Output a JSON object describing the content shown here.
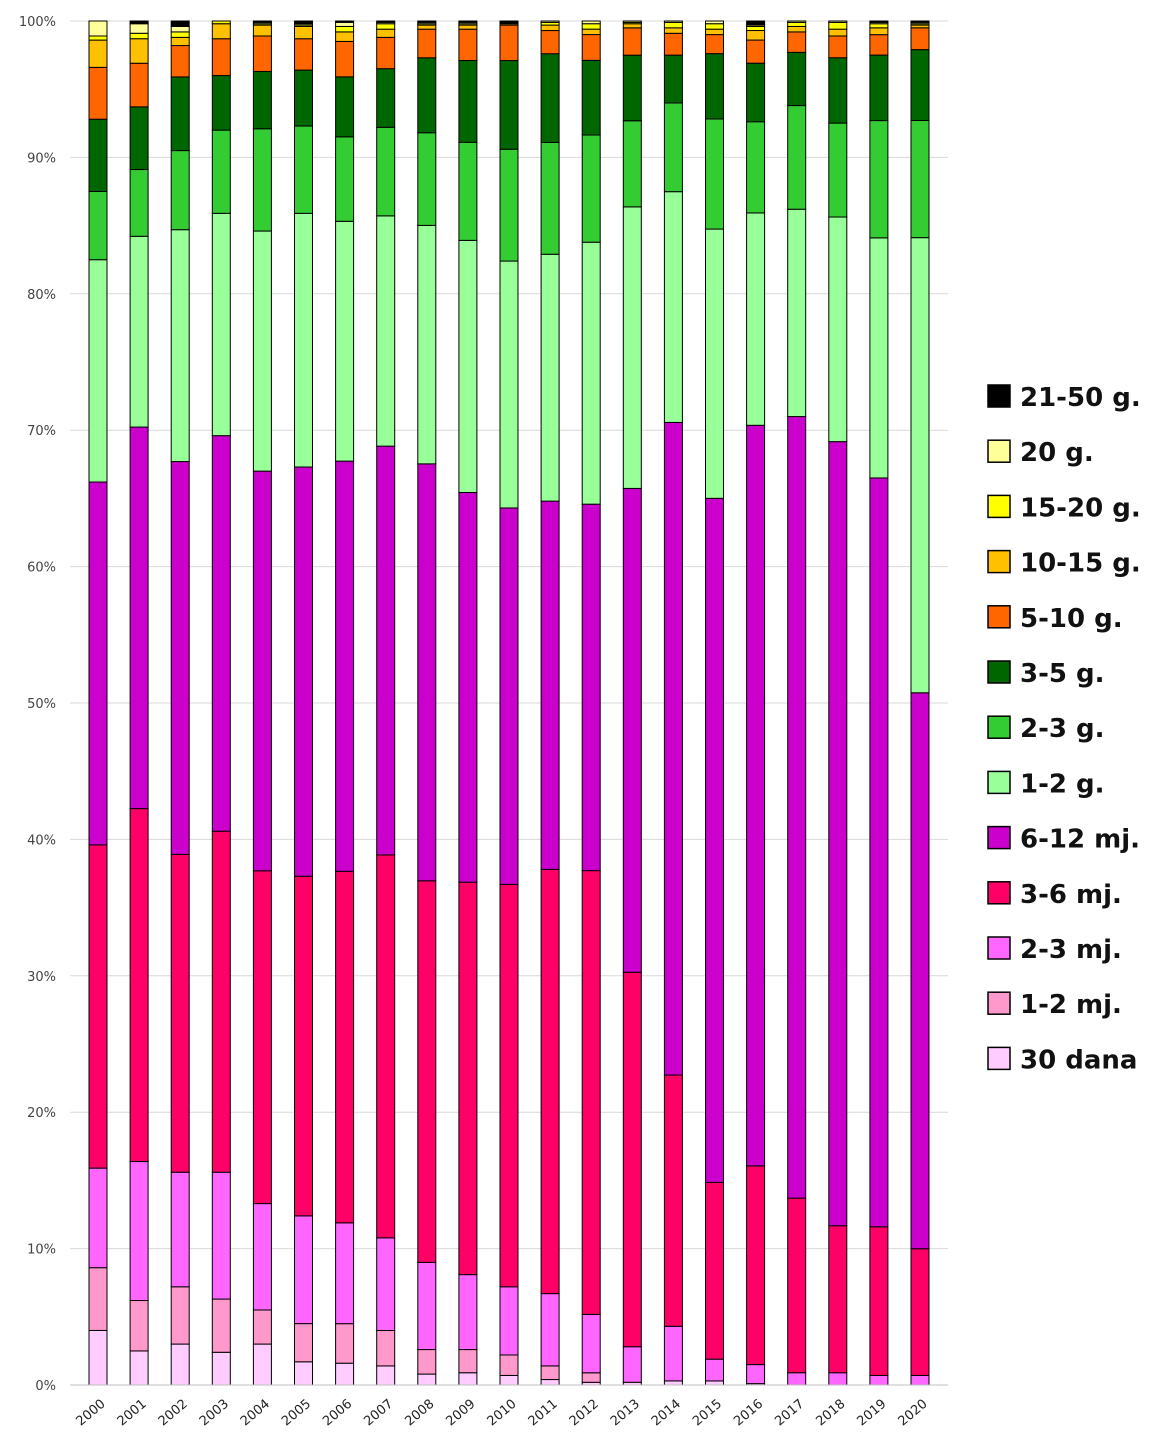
{
  "chart_data": {
    "type": "bar",
    "stacked": true,
    "normalized": true,
    "title": "",
    "xlabel": "",
    "ylabel": "",
    "ylim": [
      0,
      100
    ],
    "y_ticks": [
      "0%",
      "10%",
      "20%",
      "30%",
      "40%",
      "50%",
      "60%",
      "70%",
      "80%",
      "90%",
      "100%"
    ],
    "grid": true,
    "legend_position": "right",
    "categories": [
      "2000",
      "2001",
      "2002",
      "2003",
      "2004",
      "2005",
      "2006",
      "2007",
      "2008",
      "2009",
      "2010",
      "2011",
      "2012",
      "2013",
      "2014",
      "2015",
      "2016",
      "2017",
      "2018",
      "2019",
      "2020"
    ],
    "series": [
      {
        "name": "30 dana",
        "color": "#ffccff",
        "values": [
          4.0,
          2.5,
          3.0,
          2.4,
          3.0,
          1.7,
          1.6,
          1.4,
          0.8,
          0.9,
          0.7,
          0.4,
          0.2,
          0.2,
          0.3,
          0.3,
          0.1,
          0.0,
          0.0,
          0.0,
          0.0
        ]
      },
      {
        "name": "1-2 mj.",
        "color": "#ff99cc",
        "values": [
          4.6,
          3.7,
          4.2,
          3.9,
          2.5,
          2.8,
          2.9,
          2.6,
          1.8,
          1.7,
          1.5,
          1.0,
          0.7,
          0.0,
          0.0,
          0.0,
          0.0,
          0.0,
          0.0,
          0.0,
          0.0
        ]
      },
      {
        "name": "2-3 mj.",
        "color": "#ff66ff",
        "values": [
          7.3,
          10.2,
          8.4,
          9.3,
          7.8,
          7.9,
          7.4,
          6.8,
          6.4,
          5.5,
          5.0,
          5.3,
          4.3,
          2.6,
          4.0,
          1.6,
          1.4,
          0.9,
          0.9,
          0.7,
          0.7
        ]
      },
      {
        "name": "3-6 mj.",
        "color": "#ff0066",
        "values": [
          23.7,
          25.9,
          23.3,
          25.0,
          24.4,
          24.9,
          25.8,
          28.1,
          28.0,
          28.8,
          29.5,
          31.1,
          32.7,
          27.4,
          18.4,
          13.0,
          14.6,
          12.8,
          10.8,
          10.9,
          9.3
        ]
      },
      {
        "name": "6-12 mj.",
        "color": "#cc00cc",
        "values": [
          26.6,
          28.0,
          28.8,
          29.0,
          29.3,
          30.0,
          30.1,
          30.0,
          30.6,
          28.6,
          27.6,
          27.0,
          27.0,
          35.4,
          47.8,
          50.3,
          54.4,
          57.3,
          57.6,
          54.9,
          40.8
        ]
      },
      {
        "name": "1-2 g.",
        "color": "#99ff99",
        "values": [
          16.3,
          14.0,
          17.0,
          16.3,
          17.6,
          18.6,
          17.6,
          16.9,
          17.5,
          18.5,
          18.1,
          18.1,
          19.3,
          20.6,
          16.9,
          19.8,
          15.6,
          15.2,
          16.5,
          17.6,
          33.4
        ]
      },
      {
        "name": "2-3 g.",
        "color": "#33cc33",
        "values": [
          5.0,
          4.9,
          5.8,
          6.1,
          7.5,
          6.4,
          6.2,
          6.5,
          6.8,
          7.2,
          8.2,
          8.2,
          7.9,
          6.3,
          6.5,
          8.1,
          6.7,
          7.6,
          6.9,
          8.6,
          8.6
        ]
      },
      {
        "name": "3-5 g.",
        "color": "#006600",
        "values": [
          5.3,
          4.6,
          5.4,
          4.0,
          4.2,
          4.1,
          4.4,
          4.3,
          5.5,
          6.0,
          6.5,
          6.5,
          5.5,
          4.8,
          3.5,
          4.8,
          4.3,
          3.9,
          4.8,
          4.8,
          5.2
        ]
      },
      {
        "name": "5-10 g.",
        "color": "#ff6600",
        "values": [
          3.8,
          3.2,
          2.3,
          2.7,
          2.6,
          2.3,
          2.6,
          2.3,
          2.1,
          2.3,
          2.6,
          1.7,
          1.9,
          2.0,
          1.6,
          1.4,
          1.7,
          1.5,
          1.6,
          1.5,
          1.6
        ]
      },
      {
        "name": "10-15 g.",
        "color": "#ffc000",
        "values": [
          2.0,
          1.8,
          0.6,
          1.1,
          0.8,
          0.9,
          0.7,
          0.6,
          0.3,
          0.3,
          0.1,
          0.4,
          0.4,
          0.3,
          0.4,
          0.4,
          0.7,
          0.4,
          0.5,
          0.5,
          0.2
        ]
      },
      {
        "name": "15-20 g.",
        "color": "#ffff00",
        "values": [
          0.3,
          0.4,
          0.4,
          0.2,
          0.1,
          0.1,
          0.4,
          0.4,
          0.1,
          0.1,
          0.0,
          0.2,
          0.4,
          0.1,
          0.4,
          0.4,
          0.3,
          0.3,
          0.5,
          0.3,
          0.1
        ]
      },
      {
        "name": "20 g.",
        "color": "#ffff99",
        "values": [
          1.1,
          0.7,
          0.4,
          0.0,
          0.1,
          0.1,
          0.3,
          0.1,
          0.1,
          0.1,
          0.0,
          0.1,
          0.2,
          0.1,
          0.1,
          0.2,
          0.1,
          0.1,
          0.1,
          0.1,
          0.1
        ]
      },
      {
        "name": "21-50 g.",
        "color": "#000000",
        "values": [
          0.0,
          0.2,
          0.4,
          0.0,
          0.1,
          0.2,
          0.1,
          0.1,
          0.1,
          0.1,
          0.2,
          0.0,
          0.0,
          0.0,
          0.0,
          0.0,
          0.3,
          0.0,
          0.0,
          0.1,
          0.1
        ]
      }
    ]
  }
}
